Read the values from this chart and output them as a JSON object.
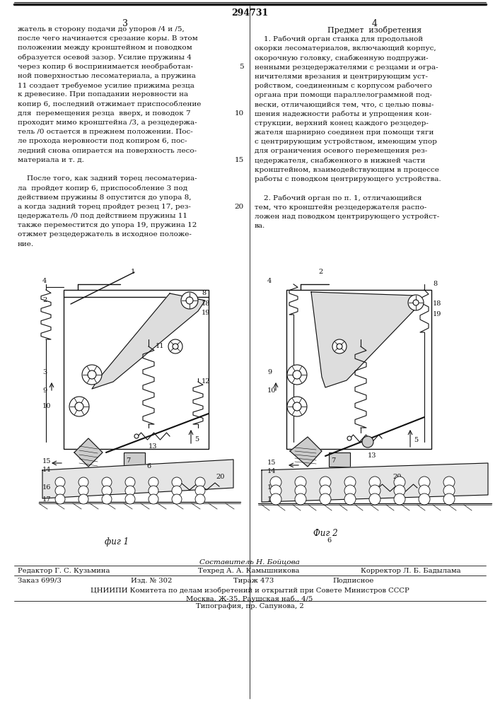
{
  "patent_number": "294731",
  "page_left": "3",
  "page_right": "4",
  "left_col_lines": [
    "жатель в сторону подачи до упоров /4 и /5,",
    "после чего начинается срезание коры. В этом",
    "положении между кронштейном и поводком",
    "образуется осевой зазор. Усилие пружины 4",
    "через копир 6 воспринимается необработан-",
    "ной поверхностью лесоматериала, а пружина",
    "11 создает требуемое усилие прижима резца",
    "к древесине. При попадании неровности на",
    "копир 6, последний отжимает приспособление",
    "для  перемещения резца  вверх, и поводок 7",
    "проходит мимо кронштейна /3, а резцедержа-",
    "тель /0 остается в прежнем положении. Пос-",
    "ле прохода неровности под копиром 6, пос-",
    "ледний снова опирается на поверхность лесо-",
    "материала и т. д.",
    "",
    "    После того, как задний торец лесоматериа-",
    "ла  пройдет копир 6, приспособление 3 под",
    "действием пружины 8 опустится до упора 8,",
    "а когда задний торец пройдет резец 17, рез-",
    "цедержатель /0 под действием пружины 11",
    "также переместится до упора 19, пружина 12",
    "отжмет резцедержатель в исходное положе-",
    "ние."
  ],
  "line_nums": {
    "4": "5",
    "9": "10",
    "14": "15",
    "19": "20"
  },
  "right_header": "Предмет  изобретения",
  "right_col_lines": [
    "    1. Рабочий орган станка для продольной",
    "окорки лесоматериалов, включающий корпус,",
    "окорочную головку, снабженную подпружи-",
    "ненными резцедержателями с резцами и огра-",
    "ничителями врезания и центрирующим уст-",
    "ройством, соединенным с корпусом рабочего",
    "органа при помощи параллелограммной под-",
    "вески, отличающийся тем, что, с целью повы-",
    "шения надежности работы и упрощения кон-",
    "струкции, верхний конец каждого резцедер-",
    "жателя шарнирно соединен при помощи тяги",
    "с центрирующим устройством, имеющим упор",
    "для ограничения осевого перемещения рез-",
    "цедержателя, снабженного в нижней части",
    "кронштейном, взаимодействующим в процессе",
    "работы с поводком центрирующего устройства.",
    "",
    "    2. Рабочий орган по п. 1, отличающийся",
    "тем, что кронштейн резцедержателя распо-",
    "ложен над поводком центрирующего устройст-",
    "ва."
  ],
  "sestavitel": "Составитель Н. Бойцова",
  "redaktor": "Редактор Г. С. Кузьмина",
  "tehred": "Техред А. А. Камышникова",
  "korrektor": "Корректор Л. Б. Бадылама",
  "zakaz": "Заказ 699/3",
  "izd": "Изд. № 302",
  "tirazh": "Тираж 473",
  "podpisnoe": "Подписное",
  "tsniipi": "ЦНИИПИ Комитета по делам изобретений и открытий при Совете Министров СССР",
  "moskva": "Москва, Ж-35, Раушская наб., 4/5",
  "tipografiya": "Типография, пр. Сапунова, 2",
  "fig1_label": "фиг 1",
  "fig2_label": "Фиг 2",
  "bg": "#ffffff",
  "ink": "#111111"
}
